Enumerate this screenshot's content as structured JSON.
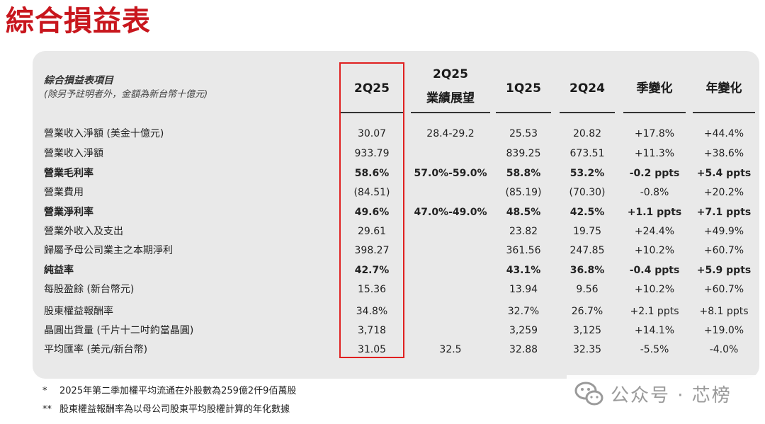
{
  "title": "綜合損益表",
  "header": {
    "label_line1": "綜合損益表項目",
    "label_line2": "(除另予註明者外，金額為新台幣十億元)",
    "columns": [
      {
        "line1": "2Q25",
        "line2": ""
      },
      {
        "line1": "2Q25",
        "line2": "業績展望"
      },
      {
        "line1": "1Q25",
        "line2": ""
      },
      {
        "line1": "2Q24",
        "line2": ""
      },
      {
        "line1": "季變化",
        "line2": ""
      },
      {
        "line1": "年變化",
        "line2": ""
      }
    ]
  },
  "rows": [
    {
      "label": "營業收入淨額 (美金十億元)",
      "bold": false,
      "values": [
        "30.07",
        "28.4-29.2",
        "25.53",
        "20.82",
        "+17.8%",
        "+44.4%"
      ]
    },
    {
      "label": "營業收入淨額",
      "bold": false,
      "values": [
        "933.79",
        "",
        "839.25",
        "673.51",
        "+11.3%",
        "+38.6%"
      ]
    },
    {
      "label": "營業毛利率",
      "bold": true,
      "values": [
        "58.6%",
        "57.0%-59.0%",
        "58.8%",
        "53.2%",
        "-0.2 ppts",
        "+5.4 ppts"
      ]
    },
    {
      "label": "營業費用",
      "bold": false,
      "values": [
        "(84.51)",
        "",
        "(85.19)",
        "(70.30)",
        "-0.8%",
        "+20.2%"
      ]
    },
    {
      "label": "營業淨利率",
      "bold": true,
      "values": [
        "49.6%",
        "47.0%-49.0%",
        "48.5%",
        "42.5%",
        "+1.1 ppts",
        "+7.1 ppts"
      ]
    },
    {
      "label": "營業外收入及支出",
      "bold": false,
      "values": [
        "29.61",
        "",
        "23.82",
        "19.75",
        "+24.4%",
        "+49.9%"
      ]
    },
    {
      "label": "歸屬予母公司業主之本期淨利",
      "bold": false,
      "values": [
        "398.27",
        "",
        "361.56",
        "247.85",
        "+10.2%",
        "+60.7%"
      ]
    },
    {
      "label": "純益率",
      "bold": true,
      "values": [
        "42.7%",
        "",
        "43.1%",
        "36.8%",
        "-0.4 ppts",
        "+5.9 ppts"
      ]
    },
    {
      "label": "每股盈餘 (新台幣元)",
      "bold": false,
      "values": [
        "15.36",
        "",
        "13.94",
        "9.56",
        "+10.2%",
        "+60.7%"
      ]
    },
    {
      "label": "股東權益報酬率",
      "bold": false,
      "values": [
        "34.8%",
        "",
        "32.7%",
        "26.7%",
        "+2.1 ppts",
        "+8.1 ppts"
      ]
    },
    {
      "label": "晶圓出貨量 (千片十二吋約當晶圓)",
      "bold": false,
      "values": [
        "3,718",
        "",
        "3,259",
        "3,125",
        "+14.1%",
        "+19.0%"
      ]
    },
    {
      "label": "平均匯率 (美元/新台幣)",
      "bold": false,
      "values": [
        "31.05",
        "32.5",
        "32.88",
        "32.35",
        "-5.5%",
        "-4.0%"
      ]
    }
  ],
  "footnotes": [
    {
      "mark": "*",
      "text": "2025年第二季加權平均流通在外股數為259億2仟9佰萬股"
    },
    {
      "mark": "**",
      "text": "股東權益報酬率為以母公司股東平均股權計算的年化數據"
    }
  ],
  "watermark": {
    "text": "公众号 · 芯榜",
    "icon": "wechat-icon"
  },
  "colors": {
    "title": "#c8161d",
    "highlight_border": "#e02020",
    "panel": "#e9e9e9"
  }
}
